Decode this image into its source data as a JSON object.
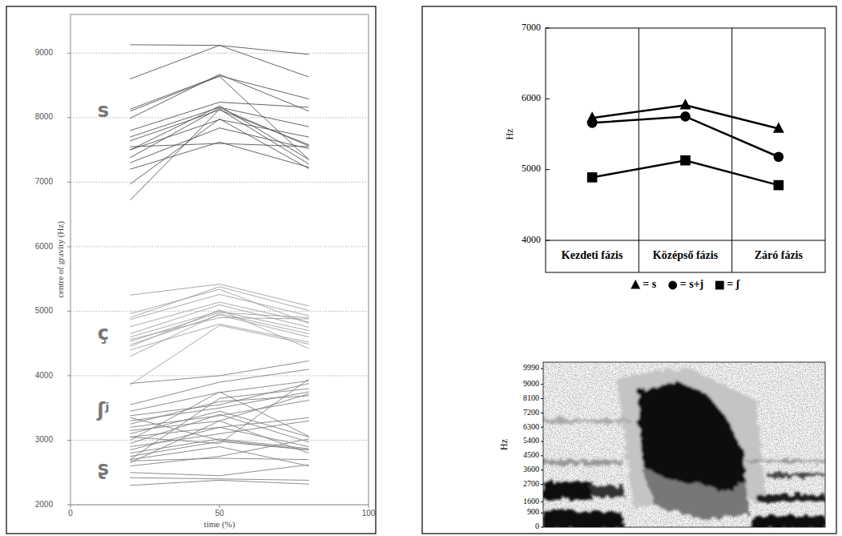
{
  "chart_data": [
    {
      "type": "line",
      "xlabel": "time (%)",
      "ylabel": "centre of gravity (Hz)",
      "x": [
        20,
        50,
        80
      ],
      "xlim": [
        0,
        100
      ],
      "xticks": [
        0,
        50,
        100
      ],
      "ylim": [
        2000,
        9600
      ],
      "yticks": [
        2000,
        3000,
        4000,
        5000,
        6000,
        7000,
        8000,
        9000
      ],
      "grid": true,
      "annotations": [
        {
          "text": "s",
          "x": 11,
          "y": 8100
        },
        {
          "text": "ç",
          "x": 11,
          "y": 4650
        },
        {
          "text": "ʃʲ",
          "x": 11,
          "y": 3450
        },
        {
          "text": "ʂ",
          "x": 11,
          "y": 2550
        }
      ],
      "series": [
        {
          "color": "#555555",
          "values": [
            9130,
            9120,
            8980
          ]
        },
        {
          "color": "#555555",
          "values": [
            8600,
            9120,
            8630
          ]
        },
        {
          "color": "#555555",
          "values": [
            8130,
            8650,
            8290
          ]
        },
        {
          "color": "#555555",
          "values": [
            7990,
            8670,
            8100
          ]
        },
        {
          "color": "#555555",
          "values": [
            7800,
            8240,
            8160
          ]
        },
        {
          "color": "#555555",
          "values": [
            7700,
            8160,
            7860
          ]
        },
        {
          "color": "#555555",
          "values": [
            7640,
            8120,
            7580
          ]
        },
        {
          "color": "#555555",
          "values": [
            7500,
            7970,
            7700
          ]
        },
        {
          "color": "#555555",
          "values": [
            7380,
            8150,
            7560
          ]
        },
        {
          "color": "#555555",
          "values": [
            7300,
            7840,
            7520
          ]
        },
        {
          "color": "#555555",
          "values": [
            7200,
            7620,
            7230
          ]
        },
        {
          "color": "#555555",
          "values": [
            6970,
            7980,
            7210
          ]
        },
        {
          "color": "#555555",
          "values": [
            6720,
            8130,
            7280
          ]
        },
        {
          "color": "#555555",
          "values": [
            7550,
            7600,
            7550
          ]
        },
        {
          "color": "#555555",
          "values": [
            8100,
            8640,
            7350
          ]
        },
        {
          "color": "#555555",
          "values": [
            7500,
            8180,
            7350
          ]
        },
        {
          "color": "#a0a0a0",
          "values": [
            5250,
            5420,
            5080
          ]
        },
        {
          "color": "#a0a0a0",
          "values": [
            4900,
            5380,
            5010
          ]
        },
        {
          "color": "#a0a0a0",
          "values": [
            4870,
            5260,
            4930
          ]
        },
        {
          "color": "#a0a0a0",
          "values": [
            4760,
            5140,
            4830
          ]
        },
        {
          "color": "#a0a0a0",
          "values": [
            4650,
            5100,
            4750
          ]
        },
        {
          "color": "#a0a0a0",
          "values": [
            4600,
            5000,
            4700
          ]
        },
        {
          "color": "#a0a0a0",
          "values": [
            4530,
            4980,
            4900
          ]
        },
        {
          "color": "#a0a0a0",
          "values": [
            4480,
            4940,
            4600
          ]
        },
        {
          "color": "#a0a0a0",
          "values": [
            4450,
            5020,
            4420
          ]
        },
        {
          "color": "#a0a0a0",
          "values": [
            4400,
            4800,
            4520
          ]
        },
        {
          "color": "#a0a0a0",
          "values": [
            4300,
            4960,
            4650
          ]
        },
        {
          "color": "#a0a0a0",
          "values": [
            3860,
            4780,
            4490
          ]
        },
        {
          "color": "#a0a0a0",
          "values": [
            4960,
            5340,
            4810
          ]
        },
        {
          "color": "#a0a0a0",
          "values": [
            4560,
            4900,
            4880
          ]
        },
        {
          "color": "#808080",
          "values": [
            3880,
            4000,
            4230
          ]
        },
        {
          "color": "#808080",
          "values": [
            3550,
            3900,
            4100
          ]
        },
        {
          "color": "#808080",
          "values": [
            3450,
            3740,
            3920
          ]
        },
        {
          "color": "#808080",
          "values": [
            3380,
            3550,
            3880
          ]
        },
        {
          "color": "#808080",
          "values": [
            3300,
            3500,
            3750
          ]
        },
        {
          "color": "#808080",
          "values": [
            3250,
            3600,
            3690
          ]
        },
        {
          "color": "#808080",
          "values": [
            3200,
            3380,
            3620
          ]
        },
        {
          "color": "#808080",
          "values": [
            3150,
            3300,
            3720
          ]
        },
        {
          "color": "#808080",
          "values": [
            3100,
            3450,
            3050
          ]
        },
        {
          "color": "#808080",
          "values": [
            3050,
            3200,
            3350
          ]
        },
        {
          "color": "#808080",
          "values": [
            3000,
            3750,
            3060
          ]
        },
        {
          "color": "#808080",
          "values": [
            2950,
            3400,
            2970
          ]
        },
        {
          "color": "#808080",
          "values": [
            2900,
            3100,
            3300
          ]
        },
        {
          "color": "#808080",
          "values": [
            2850,
            3200,
            2900
          ]
        },
        {
          "color": "#808080",
          "values": [
            2800,
            3020,
            2870
          ]
        },
        {
          "color": "#808080",
          "values": [
            2750,
            2980,
            2850
          ]
        },
        {
          "color": "#808080",
          "values": [
            2700,
            2900,
            2600
          ]
        },
        {
          "color": "#808080",
          "values": [
            2680,
            2720,
            2700
          ]
        },
        {
          "color": "#808080",
          "values": [
            2650,
            3300,
            2800
          ]
        },
        {
          "color": "#808080",
          "values": [
            2600,
            2750,
            3020
          ]
        },
        {
          "color": "#808080",
          "values": [
            2500,
            2450,
            2620
          ]
        },
        {
          "color": "#808080",
          "values": [
            2420,
            2400,
            2380
          ]
        },
        {
          "color": "#808080",
          "values": [
            2300,
            2380,
            2320
          ]
        },
        {
          "color": "#808080",
          "values": [
            2700,
            3650,
            3800
          ]
        },
        {
          "color": "#808080",
          "values": [
            3350,
            3000,
            2850
          ]
        },
        {
          "color": "#808080",
          "values": [
            3050,
            2950,
            3950
          ]
        }
      ]
    },
    {
      "type": "line",
      "ylabel": "Hz",
      "categories": [
        "Kezdeti fázis",
        "Középső fázis",
        "Záró fázis"
      ],
      "ylim": [
        4000,
        7000
      ],
      "yticks": [
        4000,
        5000,
        6000,
        7000
      ],
      "legend": "bottom",
      "series": [
        {
          "name": "= s",
          "color": "#000000",
          "marker": "triangle",
          "values": [
            5730,
            5910,
            5580
          ]
        },
        {
          "name": "= s+j",
          "color": "#000000",
          "marker": "circle",
          "values": [
            5660,
            5750,
            5180
          ]
        },
        {
          "name": "= ʃ",
          "color": "#000000",
          "marker": "square",
          "values": [
            4890,
            5130,
            4780
          ]
        }
      ]
    },
    {
      "type": "spectrogram",
      "ylabel": "Hz",
      "ylim": [
        0,
        10400
      ],
      "yticks": [
        0,
        900,
        1600,
        2700,
        3600,
        4500,
        5400,
        6300,
        7200,
        8100,
        9000,
        9990
      ]
    }
  ]
}
